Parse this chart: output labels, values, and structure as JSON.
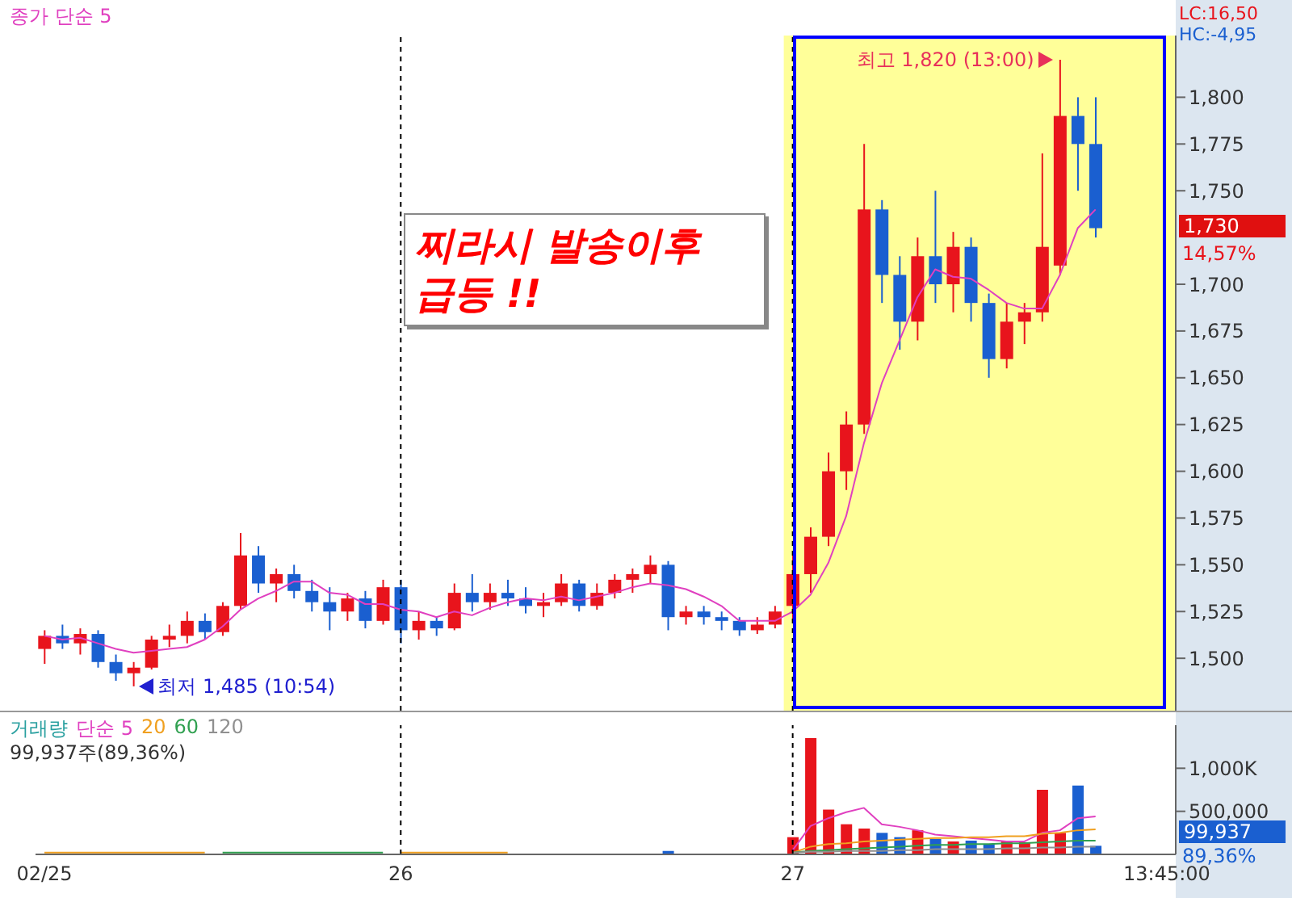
{
  "chart_data": [
    {
      "type": "candlestick",
      "categories": [
        "02/25",
        null,
        null,
        null,
        null,
        null,
        null,
        null,
        null,
        null,
        null,
        null,
        null,
        null,
        null,
        null,
        null,
        null,
        null,
        null,
        "26",
        null,
        null,
        null,
        null,
        null,
        null,
        null,
        null,
        null,
        null,
        null,
        null,
        null,
        null,
        null,
        null,
        null,
        null,
        null,
        null,
        null,
        "27",
        null,
        null,
        null,
        null,
        null,
        null,
        null,
        null,
        null,
        null,
        null,
        null,
        null,
        null,
        null,
        null,
        null,
        null,
        null,
        null,
        "13:45:00"
      ],
      "ohlc": [
        [
          1505,
          1515,
          1497,
          1512
        ],
        [
          1512,
          1518,
          1505,
          1508
        ],
        [
          1508,
          1516,
          1502,
          1513
        ],
        [
          1513,
          1515,
          1495,
          1498
        ],
        [
          1498,
          1502,
          1488,
          1492
        ],
        [
          1492,
          1498,
          1485,
          1495
        ],
        [
          1495,
          1512,
          1494,
          1510
        ],
        [
          1510,
          1518,
          1506,
          1512
        ],
        [
          1512,
          1525,
          1508,
          1520
        ],
        [
          1520,
          1524,
          1510,
          1514
        ],
        [
          1514,
          1530,
          1512,
          1528
        ],
        [
          1528,
          1567,
          1526,
          1555
        ],
        [
          1555,
          1560,
          1535,
          1540
        ],
        [
          1540,
          1548,
          1530,
          1545
        ],
        [
          1545,
          1550,
          1532,
          1536
        ],
        [
          1536,
          1542,
          1525,
          1530
        ],
        [
          1530,
          1538,
          1515,
          1525
        ],
        [
          1525,
          1535,
          1520,
          1532
        ],
        [
          1532,
          1536,
          1516,
          1520
        ],
        [
          1520,
          1542,
          1518,
          1538
        ],
        [
          1538,
          1542,
          1508,
          1515
        ],
        [
          1515,
          1525,
          1510,
          1520
        ],
        [
          1520,
          1522,
          1512,
          1516
        ],
        [
          1516,
          1540,
          1515,
          1535
        ],
        [
          1535,
          1545,
          1525,
          1530
        ],
        [
          1530,
          1540,
          1526,
          1535
        ],
        [
          1535,
          1542,
          1528,
          1532
        ],
        [
          1532,
          1538,
          1524,
          1528
        ],
        [
          1528,
          1535,
          1522,
          1530
        ],
        [
          1530,
          1545,
          1528,
          1540
        ],
        [
          1540,
          1542,
          1525,
          1528
        ],
        [
          1528,
          1540,
          1526,
          1535
        ],
        [
          1535,
          1545,
          1532,
          1542
        ],
        [
          1542,
          1548,
          1535,
          1545
        ],
        [
          1545,
          1555,
          1540,
          1550
        ],
        [
          1550,
          1552,
          1515,
          1522
        ],
        [
          1522,
          1528,
          1518,
          1525
        ],
        [
          1525,
          1528,
          1518,
          1522
        ],
        [
          1522,
          1525,
          1515,
          1520
        ],
        [
          1520,
          1522,
          1512,
          1515
        ],
        [
          1515,
          1522,
          1513,
          1518
        ],
        [
          1518,
          1528,
          1516,
          1525
        ],
        [
          1528,
          1555,
          1520,
          1545
        ],
        [
          1545,
          1570,
          1535,
          1565
        ],
        [
          1565,
          1610,
          1560,
          1600
        ],
        [
          1600,
          1632,
          1590,
          1625
        ],
        [
          1625,
          1775,
          1620,
          1740
        ],
        [
          1740,
          1745,
          1690,
          1705
        ],
        [
          1705,
          1715,
          1665,
          1680
        ],
        [
          1680,
          1725,
          1670,
          1715
        ],
        [
          1715,
          1750,
          1690,
          1700
        ],
        [
          1700,
          1728,
          1685,
          1720
        ],
        [
          1720,
          1725,
          1680,
          1690
        ],
        [
          1690,
          1695,
          1650,
          1660
        ],
        [
          1660,
          1690,
          1655,
          1680
        ],
        [
          1680,
          1690,
          1668,
          1685
        ],
        [
          1685,
          1770,
          1680,
          1720
        ],
        [
          1710,
          1820,
          1705,
          1790
        ],
        [
          1790,
          1800,
          1750,
          1775
        ],
        [
          1775,
          1800,
          1725,
          1730
        ],
        null,
        null,
        null,
        null
      ],
      "colors": [
        "#e8141c",
        "#1a5fd0",
        "#e8141c",
        "#1a5fd0",
        "#1a5fd0",
        "#e8141c",
        "#e8141c",
        "#e8141c",
        "#e8141c",
        "#1a5fd0",
        "#e8141c",
        "#e8141c",
        "#1a5fd0",
        "#e8141c",
        "#1a5fd0",
        "#1a5fd0",
        "#1a5fd0",
        "#e8141c",
        "#1a5fd0",
        "#e8141c",
        "#1a5fd0",
        "#e8141c",
        "#1a5fd0",
        "#e8141c",
        "#1a5fd0",
        "#e8141c",
        "#1a5fd0",
        "#1a5fd0",
        "#e8141c",
        "#e8141c",
        "#1a5fd0",
        "#e8141c",
        "#e8141c",
        "#e8141c",
        "#e8141c",
        "#1a5fd0",
        "#e8141c",
        "#1a5fd0",
        "#1a5fd0",
        "#1a5fd0",
        "#e8141c",
        "#e8141c",
        "#e8141c",
        "#e8141c",
        "#e8141c",
        "#e8141c",
        "#e8141c",
        "#1a5fd0",
        "#1a5fd0",
        "#e8141c",
        "#1a5fd0",
        "#e8141c",
        "#1a5fd0",
        "#1a5fd0",
        "#e8141c",
        "#e8141c",
        "#e8141c",
        "#e8141c",
        "#1a5fd0",
        "#1a5fd0",
        null,
        null,
        null,
        null
      ],
      "series": [
        {
          "type": "line",
          "name": "종가 단순 5",
          "color": "#e040c0",
          "values": [
            1512,
            1510,
            1511,
            1508,
            1505,
            1503,
            1504,
            1505,
            1506,
            1510,
            1517,
            1526,
            1532,
            1536,
            1541,
            1541,
            1535,
            1534,
            1529,
            1529,
            1526,
            1525,
            1522,
            1525,
            1523,
            1527,
            1530,
            1532,
            1531,
            1533,
            1531,
            1533,
            1535,
            1538,
            1540,
            1539,
            1537,
            1533,
            1528,
            1520,
            1520,
            1520,
            1525,
            1534,
            1551,
            1576,
            1615,
            1647,
            1670,
            1693,
            1708,
            1704,
            1703,
            1697,
            1690,
            1687,
            1687,
            1705,
            1730,
            1740,
            null,
            null,
            null,
            null
          ]
        }
      ],
      "ylim": [
        1472,
        1833
      ],
      "yticks": [
        {
          "value": 1500,
          "label": "1,500"
        },
        {
          "value": 1525,
          "label": "1,525"
        },
        {
          "value": 1550,
          "label": "1,550"
        },
        {
          "value": 1575,
          "label": "1,575"
        },
        {
          "value": 1600,
          "label": "1,600"
        },
        {
          "value": 1625,
          "label": "1,625"
        },
        {
          "value": 1650,
          "label": "1,650"
        },
        {
          "value": 1675,
          "label": "1,675"
        },
        {
          "value": 1700,
          "label": "1,700"
        },
        {
          "value": 1750,
          "label": "1,750"
        },
        {
          "value": 1775,
          "label": "1,775"
        },
        {
          "value": 1800,
          "label": "1,800"
        }
      ],
      "tick_labels": "y",
      "legend": "top left",
      "grid": false,
      "ref_lines": [
        {
          "axis": "x",
          "value": "26",
          "line_style": "dashed",
          "color": "#000000"
        },
        {
          "axis": "x",
          "value": "27",
          "line_style": "dashed",
          "color": "#000000"
        }
      ],
      "bands": [
        {
          "axis": "x",
          "from": "27",
          "to": "13:45:00",
          "color": "#ffff99"
        }
      ],
      "annotations": [
        "최고 1,820 (13:00)",
        "최저 1,485 (10:54)",
        "찌라시 발송이후\n급등 !!",
        "LC:16,50",
        "HC:-4,95",
        "1,730",
        "14,57%"
      ]
    },
    {
      "type": "bar",
      "title": "거래량",
      "categories": [
        "02/25",
        null,
        null,
        null,
        null,
        null,
        null,
        null,
        null,
        null,
        null,
        null,
        null,
        null,
        null,
        null,
        null,
        null,
        null,
        null,
        "26",
        null,
        null,
        null,
        null,
        null,
        null,
        null,
        null,
        null,
        null,
        null,
        null,
        null,
        null,
        null,
        null,
        null,
        null,
        null,
        null,
        null,
        "27",
        null,
        null,
        null,
        null,
        null,
        null,
        null,
        null,
        null,
        null,
        null,
        null,
        null,
        null,
        null,
        null,
        null,
        null,
        null,
        null,
        "13:45:00"
      ],
      "values": [
        null,
        null,
        null,
        null,
        null,
        null,
        null,
        null,
        null,
        null,
        null,
        null,
        null,
        null,
        null,
        null,
        null,
        null,
        null,
        null,
        null,
        null,
        null,
        null,
        null,
        null,
        null,
        null,
        null,
        null,
        null,
        null,
        null,
        null,
        null,
        40000,
        null,
        null,
        null,
        null,
        null,
        null,
        200000,
        1350000,
        520000,
        350000,
        300000,
        250000,
        200000,
        280000,
        180000,
        150000,
        160000,
        120000,
        150000,
        140000,
        750000,
        250000,
        800000,
        99937,
        null,
        null,
        null,
        null
      ],
      "colors": [
        "#e8141c",
        "#1a5fd0",
        "#e8141c",
        "#1a5fd0",
        "#1a5fd0",
        "#e8141c",
        "#e8141c",
        "#e8141c",
        "#e8141c",
        "#1a5fd0",
        "#e8141c",
        "#e8141c",
        "#1a5fd0",
        "#e8141c",
        "#1a5fd0",
        "#1a5fd0",
        "#1a5fd0",
        "#e8141c",
        "#1a5fd0",
        "#e8141c",
        "#1a5fd0",
        "#e8141c",
        "#1a5fd0",
        "#e8141c",
        "#1a5fd0",
        "#e8141c",
        "#1a5fd0",
        "#1a5fd0",
        "#e8141c",
        "#e8141c",
        "#1a5fd0",
        "#e8141c",
        "#e8141c",
        "#e8141c",
        "#e8141c",
        "#1a5fd0",
        "#e8141c",
        "#1a5fd0",
        "#1a5fd0",
        "#1a5fd0",
        "#e8141c",
        "#e8141c",
        "#e8141c",
        "#e8141c",
        "#e8141c",
        "#e8141c",
        "#e8141c",
        "#1a5fd0",
        "#1a5fd0",
        "#e8141c",
        "#1a5fd0",
        "#e8141c",
        "#1a5fd0",
        "#1a5fd0",
        "#e8141c",
        "#e8141c",
        "#e8141c",
        "#e8141c",
        "#1a5fd0",
        "#1a5fd0",
        null,
        null,
        null,
        null
      ],
      "series": [
        {
          "type": "line",
          "name": "단순 5",
          "color": "#e040c0",
          "values": [
            null,
            null,
            null,
            null,
            null,
            null,
            null,
            null,
            null,
            null,
            null,
            null,
            null,
            null,
            null,
            null,
            null,
            null,
            null,
            null,
            null,
            null,
            null,
            null,
            null,
            null,
            null,
            null,
            null,
            null,
            null,
            null,
            null,
            null,
            null,
            null,
            null,
            null,
            null,
            null,
            null,
            null,
            50000,
            330000,
            420000,
            490000,
            540000,
            350000,
            320000,
            280000,
            230000,
            210000,
            190000,
            170000,
            150000,
            150000,
            250000,
            280000,
            420000,
            440000,
            null,
            null,
            null,
            null
          ]
        },
        {
          "type": "line",
          "name": "20",
          "color": "#f0a020",
          "values": [
            20000,
            20000,
            20000,
            20000,
            20000,
            20000,
            20000,
            20000,
            20000,
            20000,
            null,
            null,
            null,
            null,
            null,
            null,
            null,
            null,
            null,
            null,
            20000,
            20000,
            20000,
            20000,
            20000,
            20000,
            20000,
            null,
            null,
            null,
            null,
            null,
            null,
            null,
            null,
            null,
            null,
            null,
            null,
            null,
            null,
            null,
            20000,
            90000,
            120000,
            130000,
            150000,
            160000,
            170000,
            180000,
            190000,
            190000,
            200000,
            200000,
            210000,
            210000,
            240000,
            250000,
            280000,
            290000,
            null,
            null,
            null,
            null
          ]
        },
        {
          "type": "line",
          "name": "60",
          "color": "#30a050",
          "values": [
            null,
            null,
            null,
            null,
            null,
            null,
            null,
            null,
            null,
            null,
            20000,
            20000,
            20000,
            20000,
            20000,
            20000,
            20000,
            20000,
            20000,
            20000,
            null,
            null,
            null,
            null,
            null,
            null,
            null,
            null,
            null,
            null,
            null,
            null,
            null,
            null,
            null,
            null,
            null,
            null,
            null,
            null,
            null,
            null,
            20000,
            40000,
            50000,
            60000,
            70000,
            80000,
            90000,
            100000,
            110000,
            110000,
            120000,
            120000,
            130000,
            130000,
            140000,
            150000,
            160000,
            160000,
            null,
            null,
            null,
            null
          ]
        },
        {
          "type": "line",
          "name": "120",
          "color": "#909090",
          "values": [
            null,
            null,
            null,
            null,
            null,
            null,
            null,
            null,
            null,
            null,
            null,
            null,
            null,
            null,
            null,
            null,
            null,
            null,
            null,
            null,
            null,
            null,
            null,
            null,
            null,
            null,
            null,
            null,
            null,
            null,
            null,
            null,
            null,
            null,
            null,
            null,
            null,
            null,
            null,
            null,
            null,
            null,
            20000,
            30000,
            30000,
            40000,
            40000,
            40000,
            50000,
            50000,
            60000,
            60000,
            60000,
            60000,
            70000,
            70000,
            80000,
            80000,
            90000,
            90000,
            null,
            null,
            null,
            null
          ]
        }
      ],
      "ylim": [
        0,
        1500000
      ],
      "yticks": [
        {
          "value": 500000,
          "label": "500,000"
        },
        {
          "value": 1000000,
          "label": "1,000K"
        }
      ],
      "legend": "top left",
      "grid": false,
      "ref_lines": [
        {
          "axis": "x",
          "value": "26",
          "line_style": "dashed",
          "color": "#000000"
        },
        {
          "axis": "x",
          "value": "27",
          "line_style": "dashed",
          "color": "#000000"
        }
      ],
      "annotations": [
        "99,937주(89,36%)",
        "99,937",
        "89,36%"
      ]
    }
  ]
}
